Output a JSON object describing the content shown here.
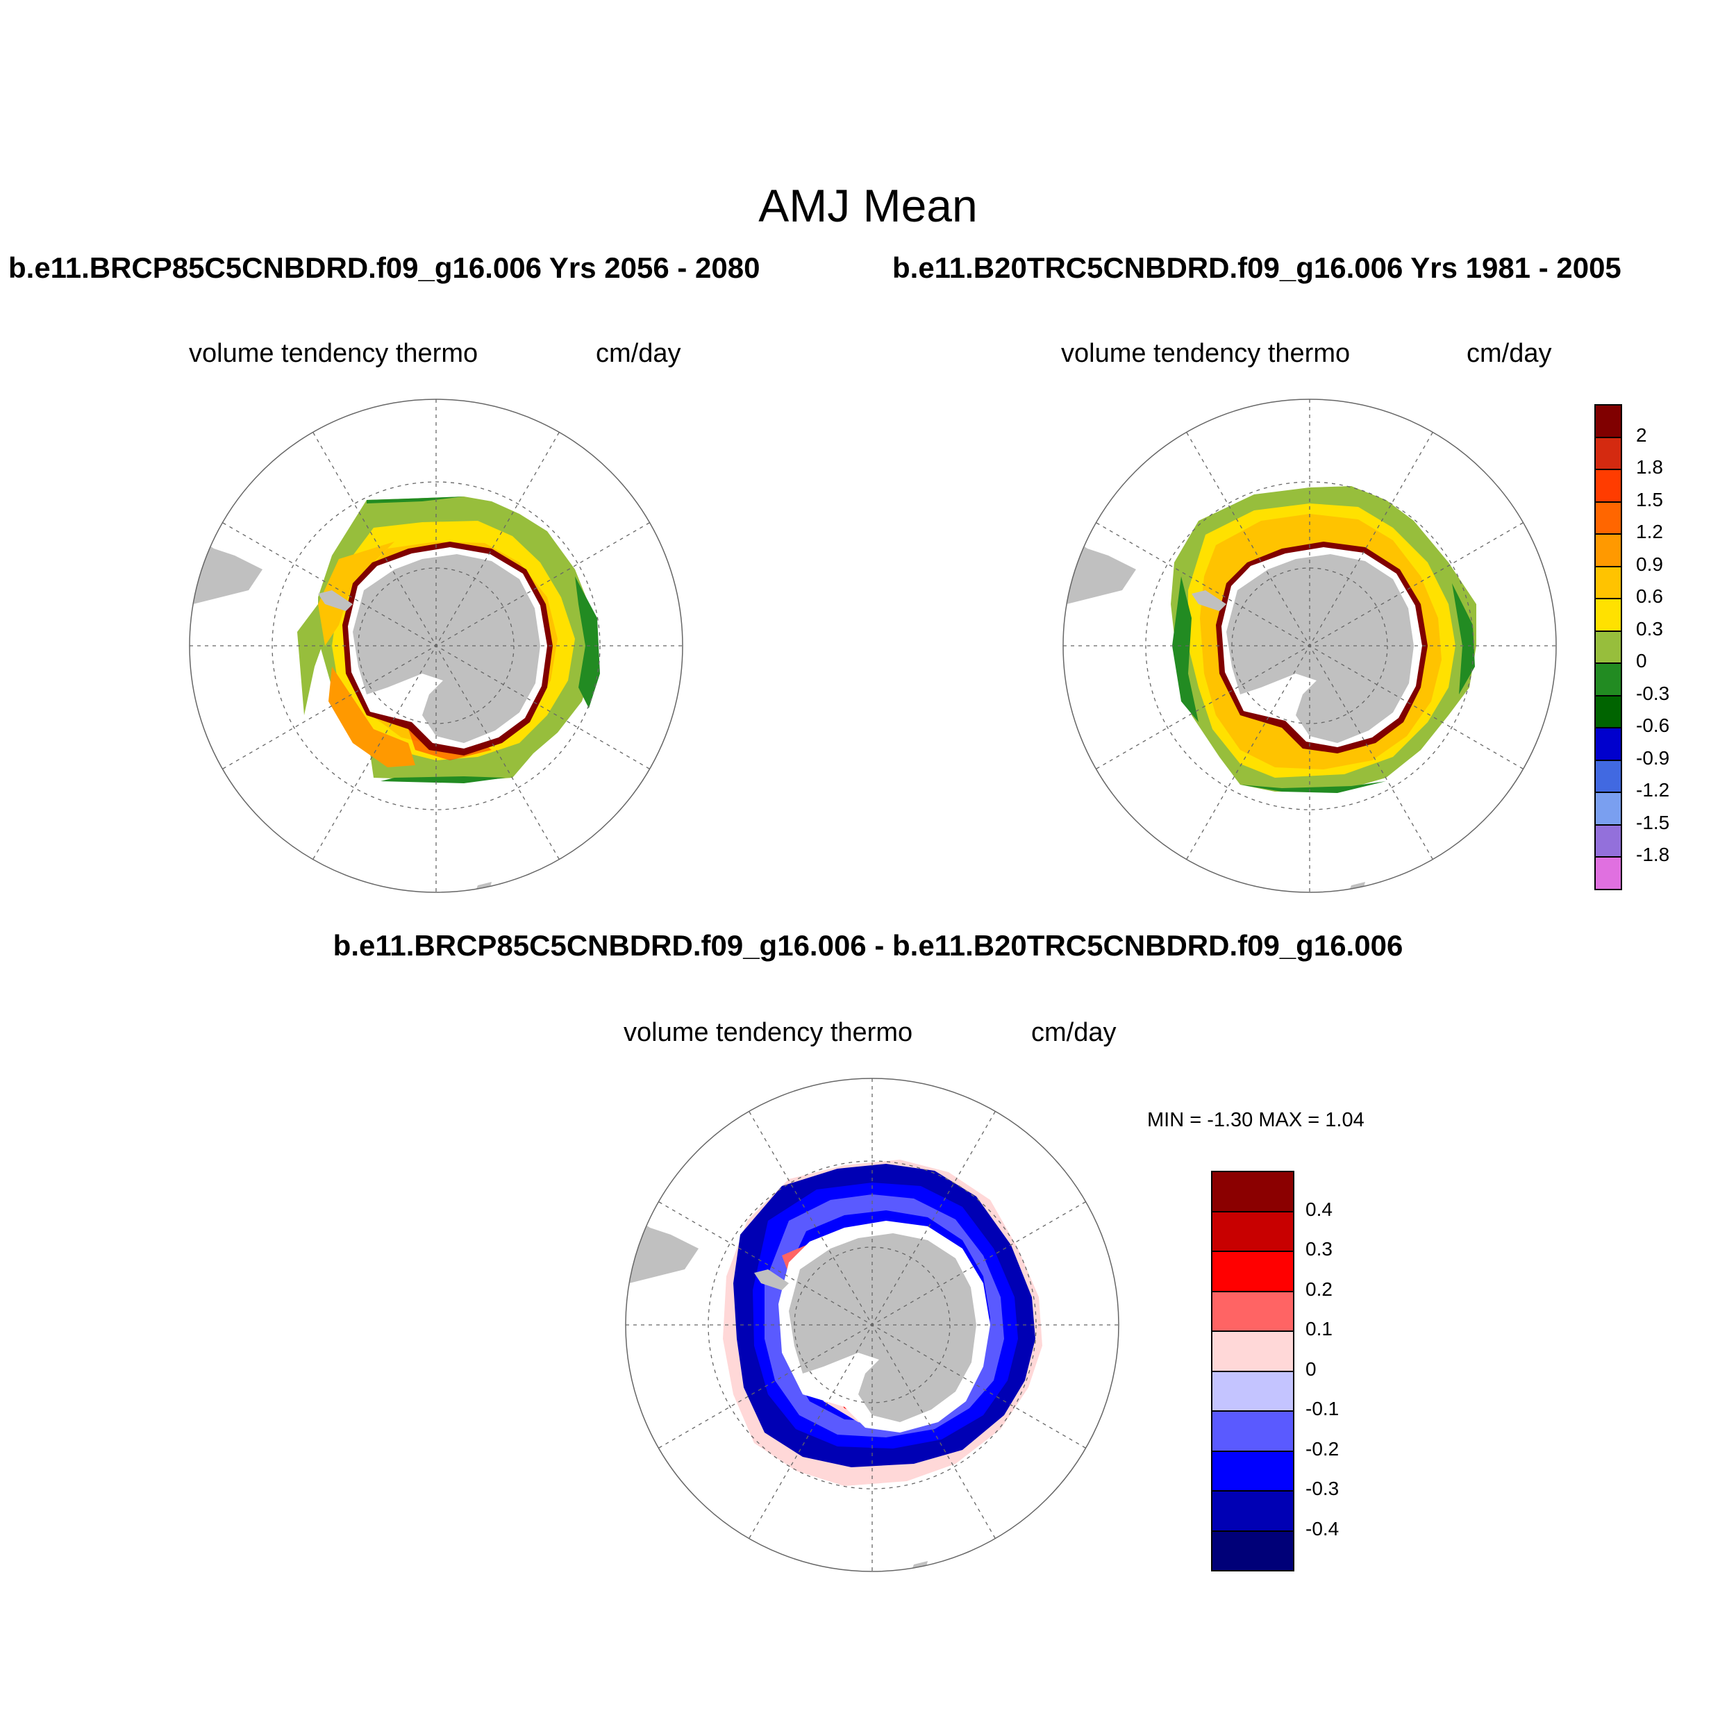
{
  "figure": {
    "title": "AMJ Mean",
    "panel_left_title": "b.e11.BRCP85C5CNBDRD.f09_g16.006  Yrs 2056 - 2080",
    "panel_right_title": "b.e11.B20TRC5CNBDRD.f09_g16.006  Yrs 1981 - 2005",
    "panel_diff_title": "b.e11.BRCP85C5CNBDRD.f09_g16.006 - b.e11.B20TRC5CNBDRD.f09_g16.006",
    "variable_label": "volume tendency thermo",
    "units_label": "cm/day",
    "diff_stats": "MIN =  -1.30 MAX =   1.04"
  },
  "maps": [
    {
      "id": "scenario",
      "projection": "south polar stereographic",
      "field": "positive tendency ring, growth (yellow-orange) with dark red near coast, green outer edge"
    },
    {
      "id": "historical",
      "projection": "south polar stereographic",
      "field": "wider positive tendency ring, similar pattern"
    },
    {
      "id": "difference",
      "projection": "south polar stereographic",
      "field": "mostly negative (blue) ring with red patches in Weddell and Ross seas"
    }
  ],
  "colorbar_main": {
    "labels": [
      "2",
      "1.8",
      "1.5",
      "1.2",
      "0.9",
      "0.6",
      "0.3",
      "0",
      "-0.3",
      "-0.6",
      "-0.9",
      "-1.2",
      "-1.5",
      "-1.8"
    ],
    "colors": [
      "#800000",
      "#d42a10",
      "#ff3c00",
      "#ff6600",
      "#ff9900",
      "#ffc300",
      "#ffe100",
      "#97be3c",
      "#228b22",
      "#006400",
      "#0000cd",
      "#4169e1",
      "#7a9ff0",
      "#9370db",
      "#e070e0"
    ]
  },
  "colorbar_diff": {
    "labels": [
      "0.4",
      "0.3",
      "0.2",
      "0.1",
      "0",
      "-0.1",
      "-0.2",
      "-0.3",
      "-0.4"
    ],
    "colors": [
      "#8b0000",
      "#c80000",
      "#ff0000",
      "#ff6464",
      "#ffd8d8",
      "#c4c4ff",
      "#5a5aff",
      "#0000ff",
      "#0000b4",
      "#000078"
    ]
  },
  "colors": {
    "land": "#c0c0c0",
    "grid": "#666666"
  }
}
